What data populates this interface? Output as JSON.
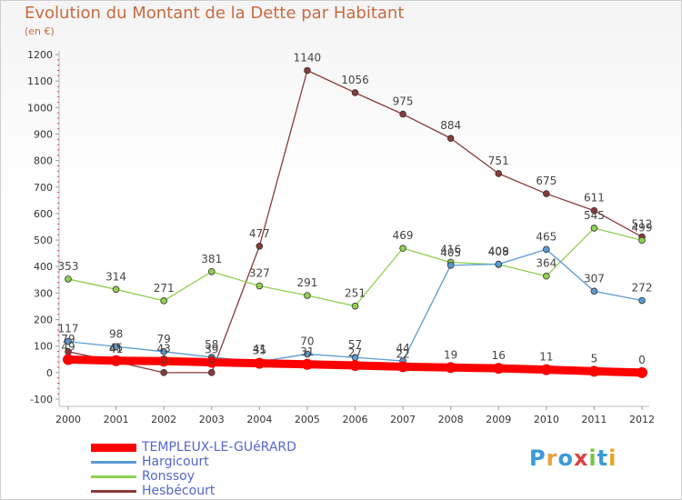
{
  "chart_data": {
    "type": "line",
    "title": "Evolution du Montant de la Dette par Habitant",
    "subtitle": "(en €)",
    "x": [
      "2000",
      "2001",
      "2002",
      "2003",
      "2004",
      "2005",
      "2006",
      "2007",
      "2008",
      "2009",
      "2010",
      "2011",
      "2012"
    ],
    "ylim": [
      -100,
      1200
    ],
    "yticks": [
      -100,
      0,
      100,
      200,
      300,
      400,
      500,
      600,
      700,
      800,
      900,
      1000,
      1100,
      1200
    ],
    "grid": false,
    "legend_position": "bottom-left",
    "series": [
      {
        "name": "TEMPLEUX-LE-GUéRARD",
        "color": "#ff0000",
        "values": [
          49,
          45,
          43,
          39,
          35,
          31,
          27,
          22,
          19,
          16,
          11,
          5,
          0
        ]
      },
      {
        "name": "Hargicourt",
        "color": "#5b9bd5",
        "values": [
          117,
          98,
          79,
          58,
          41,
          70,
          57,
          44,
          405,
          409,
          465,
          307,
          272
        ]
      },
      {
        "name": "Ronssoy",
        "color": "#8fd14f",
        "values": [
          353,
          314,
          271,
          381,
          327,
          291,
          251,
          469,
          416,
          408,
          364,
          545,
          499
        ]
      },
      {
        "name": "Hesbécourt",
        "color": "#8b3a3a",
        "values": [
          79,
          41,
          0,
          0,
          477,
          1140,
          1056,
          975,
          884,
          751,
          675,
          611,
          512
        ]
      }
    ],
    "point_labels": [
      {
        "series": 0,
        "labels": [
          "49",
          "45",
          "43",
          "39",
          "35",
          "31",
          "27",
          "22",
          "19",
          "16",
          "11",
          "5",
          "0"
        ]
      },
      {
        "series": 1,
        "labels": [
          "117",
          "98",
          "79",
          "58",
          "41",
          "70",
          "57",
          "44",
          "405",
          "409",
          "465",
          "307",
          "272"
        ]
      },
      {
        "series": 2,
        "labels": [
          "353",
          "314",
          "271",
          "381",
          "327",
          "291",
          "251",
          "469",
          "416",
          "408",
          "364",
          "545",
          "499"
        ]
      },
      {
        "series": 3,
        "labels": [
          "79",
          "41",
          "0",
          "0",
          "477",
          "1140",
          "1056",
          "975",
          "884",
          "751",
          "675",
          "611",
          "512"
        ]
      }
    ]
  },
  "logo": {
    "text": "Proxiti"
  }
}
